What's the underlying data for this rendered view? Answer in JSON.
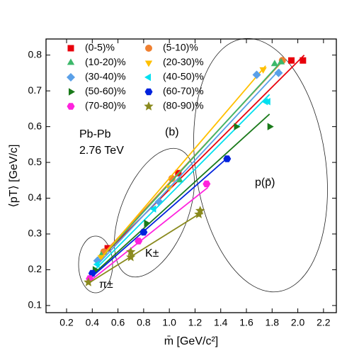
{
  "chart_data": {
    "type": "scatter",
    "xlabel": "m̄ [GeV/c²]",
    "ylabel": "⟨pT⟩ [GeV/c]",
    "xlim": [
      0.04,
      2.3
    ],
    "ylim": [
      0.08,
      0.845
    ],
    "xticks": [
      0.2,
      0.4,
      0.6,
      0.8,
      {
        "value": 1,
        "label": "1.0"
      },
      1.2,
      1.4,
      1.6,
      1.8,
      {
        "value": 2,
        "label": "2.0"
      },
      2.2
    ],
    "yticks": [
      0.1,
      0.2,
      0.3,
      0.4,
      0.5,
      0.6,
      0.7,
      0.8
    ],
    "annotations": [
      "Pb-Pb",
      "2.76 TeV",
      "(b)",
      "π±",
      "K±",
      "p(p̄)"
    ],
    "series": [
      {
        "name": "(0-5)%",
        "color": "#e8000b",
        "marker": "square",
        "x": [
          0.52,
          1.07,
          1.95,
          2.04
        ],
        "values": [
          0.26,
          0.47,
          0.785,
          0.785
        ],
        "fit": {
          "x": [
            0.5,
            2.05
          ],
          "values": [
            0.245,
            0.8
          ]
        }
      },
      {
        "name": "(5-10)%",
        "color": "#f08030",
        "marker": "circle",
        "x": [
          0.49,
          1.02,
          1.88
        ],
        "values": [
          0.25,
          0.455,
          0.785
        ],
        "fit": {
          "x": [
            0.46,
            1.9
          ],
          "values": [
            0.235,
            0.79
          ]
        }
      },
      {
        "name": "(10-20)%",
        "color": "#3cb86a",
        "marker": "triangle-up",
        "x": [
          0.47,
          1.08,
          1.82,
          1.87
        ],
        "values": [
          0.24,
          0.45,
          0.775,
          0.78
        ],
        "fit": {
          "x": [
            0.45,
            1.88
          ],
          "values": [
            0.225,
            0.785
          ]
        }
      },
      {
        "name": "(20-30)%",
        "color": "#ffc000",
        "marker": "triangle-down",
        "x": [
          0.47,
          1.0,
          1.73
        ],
        "values": [
          0.235,
          0.43,
          0.76
        ],
        "fit": {
          "x": [
            0.45,
            1.75
          ],
          "values": [
            0.225,
            0.77
          ]
        }
      },
      {
        "name": "(30-40)%",
        "color": "#5aa0e8",
        "marker": "diamond",
        "x": [
          0.44,
          0.92,
          1.68,
          1.85
        ],
        "values": [
          0.225,
          0.39,
          0.745,
          0.75
        ],
        "fit": {
          "x": [
            0.43,
            1.86
          ],
          "values": [
            0.21,
            0.76
          ]
        }
      },
      {
        "name": "(40-50)%",
        "color": "#00e0f0",
        "marker": "triangle-left",
        "x": [
          0.44,
          0.88,
          1.75,
          1.77
        ],
        "values": [
          0.215,
          0.37,
          0.67,
          0.67
        ],
        "fit": {
          "x": [
            0.42,
            1.78
          ],
          "values": [
            0.2,
            0.69
          ]
        }
      },
      {
        "name": "(50-60)%",
        "color": "#1a7a1a",
        "marker": "triangle-right",
        "x": [
          0.42,
          0.82,
          1.52,
          1.78
        ],
        "values": [
          0.2,
          0.33,
          0.6,
          0.6
        ],
        "fit": {
          "x": [
            0.4,
            1.78
          ],
          "values": [
            0.185,
            0.635
          ]
        }
      },
      {
        "name": "(60-70)%",
        "color": "#0022dd",
        "marker": "hexagon",
        "x": [
          0.4,
          0.8,
          1.45
        ],
        "values": [
          0.19,
          0.305,
          0.51
        ],
        "fit": {
          "x": [
            0.38,
            1.46
          ],
          "values": [
            0.175,
            0.515
          ]
        }
      },
      {
        "name": "(70-80)%",
        "color": "#ff22dd",
        "marker": "hexagon",
        "x": [
          0.38,
          0.76,
          1.29
        ],
        "values": [
          0.175,
          0.28,
          0.44
        ],
        "fit": {
          "x": [
            0.37,
            1.3
          ],
          "values": [
            0.165,
            0.43
          ]
        }
      },
      {
        "name": "(80-90)%",
        "color": "#8a8a1e",
        "marker": "star",
        "x": [
          0.37,
          0.7,
          0.7,
          1.23,
          1.24
        ],
        "values": [
          0.165,
          0.235,
          0.25,
          0.355,
          0.365
        ],
        "fit": {
          "x": [
            0.36,
            1.25
          ],
          "values": [
            0.16,
            0.36
          ]
        }
      }
    ]
  }
}
